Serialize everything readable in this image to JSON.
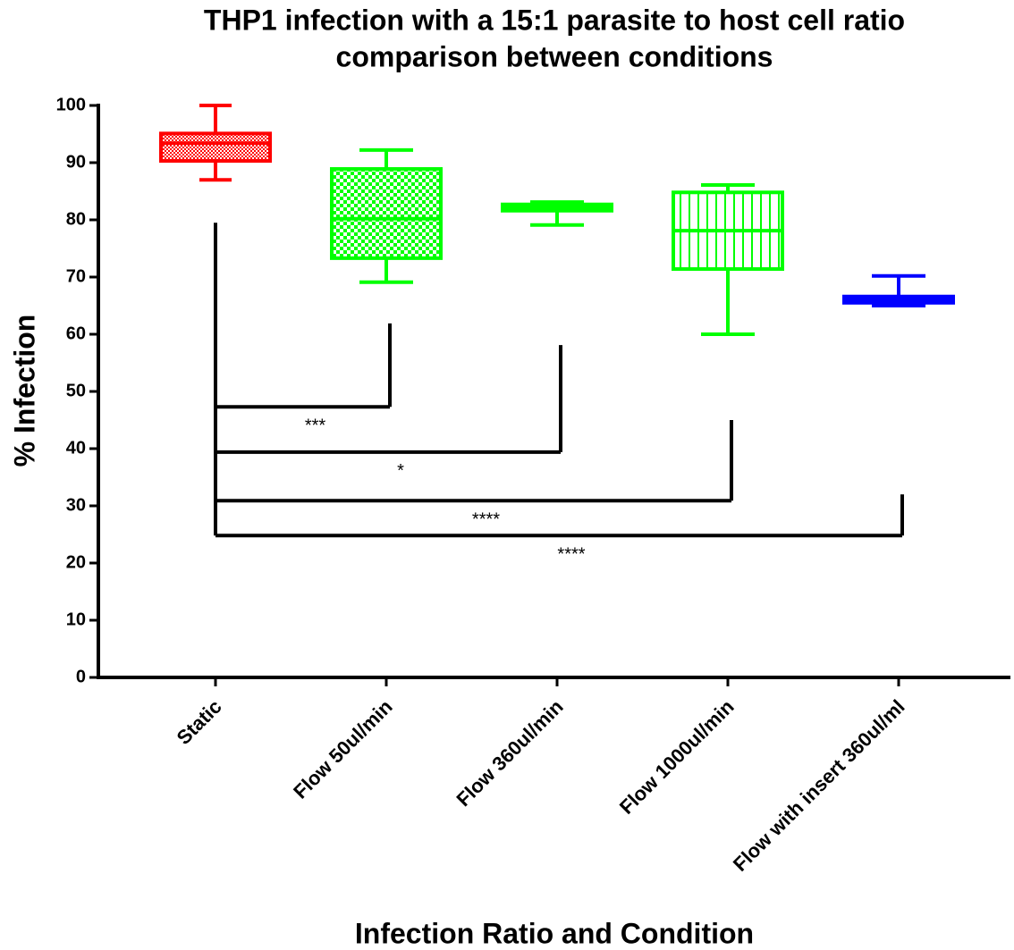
{
  "chart_data": {
    "type": "box",
    "title": [
      "THP1 infection with a 15:1 parasite to host cell ratio",
      "comparison between conditions"
    ],
    "xlabel": "Infection Ratio and Condition",
    "ylabel": "% Infection",
    "categories": [
      "Static",
      "Flow 50ul/min",
      "Flow 360ul/min",
      "Flow 1000ul/min",
      "Flow with insert 360ul/ml"
    ],
    "boxes": [
      {
        "min": 87,
        "q1": 90.3,
        "median": 93.4,
        "q3": 95.1,
        "max": 100,
        "color": "#ff0000",
        "pattern": "fine-checker"
      },
      {
        "min": 69.1,
        "q1": 73.3,
        "median": 80.2,
        "q3": 88.9,
        "max": 92.2,
        "color": "#00ff00",
        "pattern": "checker"
      },
      {
        "min": 79.1,
        "q1": 81.6,
        "median": 82.1,
        "q3": 82.7,
        "max": 83.1,
        "color": "#00ff00",
        "pattern": "solid"
      },
      {
        "min": 60,
        "q1": 71.4,
        "median": 78.1,
        "q3": 84.8,
        "max": 86.1,
        "color": "#00ff00",
        "pattern": "vertical"
      },
      {
        "min": 65,
        "q1": 65.5,
        "median": 66,
        "q3": 66.6,
        "max": 70.2,
        "color": "#0000ff",
        "pattern": "solid"
      }
    ],
    "ylim": [
      0,
      100
    ],
    "yticks": [
      0,
      10,
      20,
      30,
      40,
      50,
      60,
      70,
      80,
      90,
      100
    ],
    "stem_top": 79.5,
    "brackets": [
      {
        "label": "***",
        "to": 1,
        "y": 47.3,
        "top": 61.9
      },
      {
        "label": "*",
        "to": 2,
        "y": 39.4,
        "top": 58.1
      },
      {
        "label": "****",
        "to": 3,
        "y": 30.9,
        "top": 45
      },
      {
        "label": "****",
        "to": 4,
        "y": 24.8,
        "top": 32
      }
    ]
  }
}
